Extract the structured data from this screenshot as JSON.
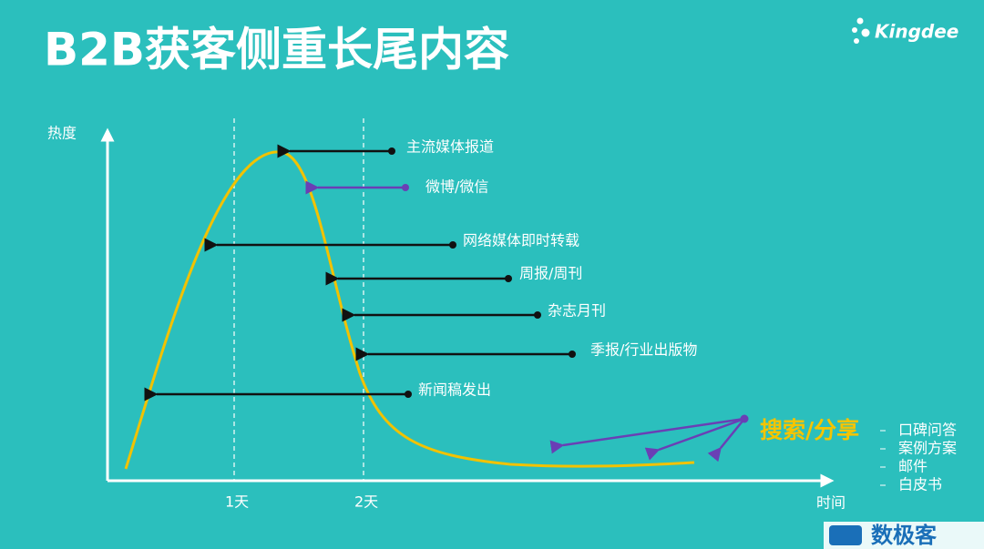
{
  "header": {
    "title": "B2B获客侧重长尾内容",
    "logo": "Kingdee"
  },
  "axes": {
    "y_label": "热度",
    "x_label": "时间",
    "x_marks": [
      "1天",
      "2天"
    ]
  },
  "annotations": [
    "主流媒体报道",
    "微博/微信",
    "网络媒体即时转载",
    "周报/周刊",
    "杂志月刊",
    "季报/行业出版物",
    "新闻稿发出"
  ],
  "search": {
    "label": "搜索/分享",
    "items": [
      "口碑问答",
      "案例方案",
      "邮件",
      "白皮书"
    ]
  },
  "watermark": "数极客"
}
